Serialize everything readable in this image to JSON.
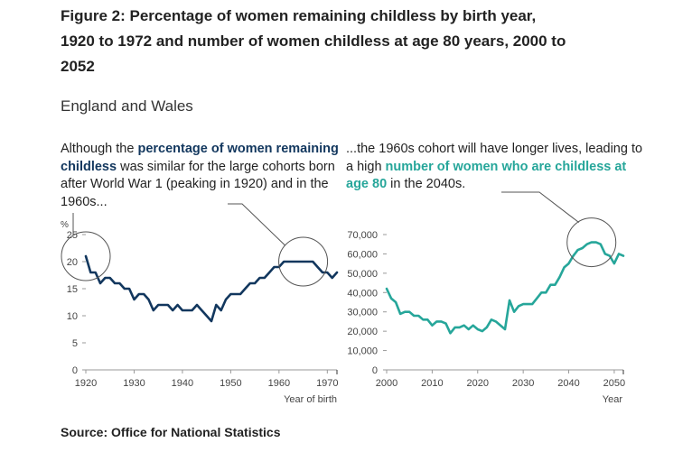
{
  "title": "Figure 2: Percentage of women remaining childless by birth year, 1920 to 1972 and number of women childless at age 80 years, 2000 to 2052",
  "subtitle": "England and Wales",
  "annotation_left": {
    "before": "Although the ",
    "highlight": "percentage of women remaining childless",
    "after": " was similar for the large cohorts born after World War 1 (peaking in 1920) and in the 1960s..."
  },
  "annotation_right": {
    "before": "...the 1960s cohort will have longer lives, leading to a high ",
    "highlight": "number of women who are childless at age 80",
    "after": " in the 2040s."
  },
  "source": "Source: Office for National Statistics",
  "colors": {
    "navy": "#12375e",
    "teal": "#26a69a",
    "axis": "#999999",
    "tick_text": "#444444"
  },
  "chart_data": [
    {
      "type": "line",
      "title": "",
      "ylabel": "%",
      "xlabel": "Year of birth",
      "xlim": [
        1920,
        1972
      ],
      "ylim": [
        0,
        25
      ],
      "x_ticks": [
        1920,
        1930,
        1940,
        1950,
        1960,
        1970
      ],
      "x_tick_labels": [
        "1920",
        "1930",
        "1940",
        "1950",
        "1960",
        "1970"
      ],
      "y_ticks": [
        0,
        5,
        10,
        15,
        20,
        25
      ],
      "y_tick_labels": [
        "0",
        "5",
        "10",
        "15",
        "20",
        "25"
      ],
      "grid": false,
      "color": "#12375e",
      "series": [
        {
          "x": [
            1920,
            1921,
            1922,
            1923,
            1924,
            1925,
            1926,
            1927,
            1928,
            1929,
            1930,
            1931,
            1932,
            1933,
            1934,
            1935,
            1936,
            1937,
            1938,
            1939,
            1940,
            1941,
            1942,
            1943,
            1944,
            1945,
            1946,
            1947,
            1948,
            1949,
            1950,
            1951,
            1952,
            1953,
            1954,
            1955,
            1956,
            1957,
            1958,
            1959,
            1960,
            1961,
            1962,
            1963,
            1964,
            1965,
            1966,
            1967,
            1968,
            1969,
            1970,
            1971,
            1972
          ],
          "values": [
            21,
            18,
            18,
            16,
            17,
            17,
            16,
            16,
            15,
            15,
            13,
            14,
            14,
            13,
            11,
            12,
            12,
            12,
            11,
            12,
            11,
            11,
            11,
            12,
            11,
            10,
            9,
            12,
            11,
            13,
            14,
            14,
            14,
            15,
            16,
            16,
            17,
            17,
            18,
            19,
            19,
            20,
            20,
            20,
            20,
            20,
            20,
            20,
            19,
            18,
            18,
            17,
            18
          ]
        }
      ],
      "highlight_circles": [
        1920,
        1965
      ]
    },
    {
      "type": "line",
      "title": "",
      "ylabel": "",
      "xlabel": "Year",
      "xlim": [
        2000,
        2052
      ],
      "ylim": [
        0,
        70000
      ],
      "x_ticks": [
        2000,
        2010,
        2020,
        2030,
        2040,
        2050
      ],
      "x_tick_labels": [
        "2000",
        "2010",
        "2020",
        "2030",
        "2040",
        "2050"
      ],
      "y_ticks": [
        0,
        10000,
        20000,
        30000,
        40000,
        50000,
        60000,
        70000
      ],
      "y_tick_labels": [
        "0",
        "10,000",
        "20,000",
        "30,000",
        "40,000",
        "50,000",
        "60,000",
        "70,000"
      ],
      "grid": false,
      "color": "#26a69a",
      "series": [
        {
          "x": [
            2000,
            2001,
            2002,
            2003,
            2004,
            2005,
            2006,
            2007,
            2008,
            2009,
            2010,
            2011,
            2012,
            2013,
            2014,
            2015,
            2016,
            2017,
            2018,
            2019,
            2020,
            2021,
            2022,
            2023,
            2024,
            2025,
            2026,
            2027,
            2028,
            2029,
            2030,
            2031,
            2032,
            2033,
            2034,
            2035,
            2036,
            2037,
            2038,
            2039,
            2040,
            2041,
            2042,
            2043,
            2044,
            2045,
            2046,
            2047,
            2048,
            2049,
            2050,
            2051,
            2052
          ],
          "values": [
            42000,
            37000,
            35000,
            29000,
            30000,
            30000,
            28000,
            28000,
            26000,
            26000,
            23000,
            25000,
            25000,
            24000,
            19000,
            22000,
            22000,
            23000,
            21000,
            23000,
            21000,
            20000,
            22000,
            26000,
            25000,
            23000,
            21000,
            36000,
            30000,
            33000,
            34000,
            34000,
            34000,
            37000,
            40000,
            40000,
            44000,
            44000,
            48000,
            53000,
            55000,
            59000,
            62000,
            63000,
            65000,
            66000,
            66000,
            65000,
            60000,
            59000,
            55000,
            60000,
            59000
          ]
        }
      ],
      "highlight_circles": [
        2045
      ]
    }
  ]
}
